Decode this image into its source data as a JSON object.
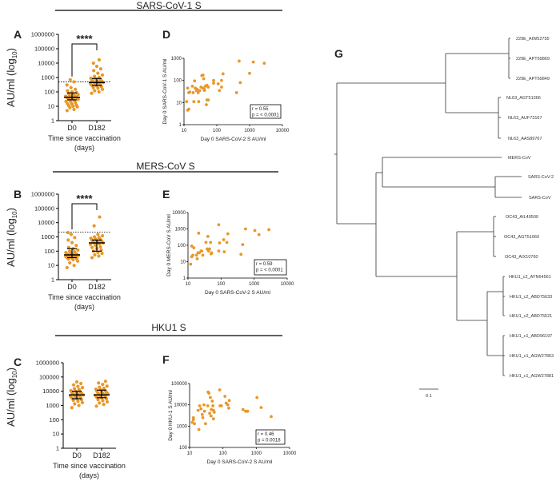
{
  "colors": {
    "dot": "#e8982a",
    "line": "#000000"
  },
  "chart_data": [
    {
      "type": "scatter",
      "panel": "A",
      "section_title": "SARS-CoV-1 S",
      "ylabel": "AU/ml (log10)",
      "ylabel_main": "AU/ml (log",
      "ylabel_sub": "10",
      "ylabel_close": ")",
      "xlabel": "Time since vaccination",
      "xlabel2": "(days)",
      "yscale": "log",
      "ylim": [
        1,
        1000000
      ],
      "yticks": [
        "1",
        "10",
        "100",
        "1000",
        "10000",
        "100000",
        "1000000"
      ],
      "categories": [
        "D0",
        "D182"
      ],
      "threshold": 500,
      "significance": "****",
      "series": [
        {
          "name": "D0",
          "median": 42,
          "iqr": [
            28,
            85
          ],
          "values": [
            5,
            6,
            8,
            9,
            10,
            11,
            12,
            14,
            15,
            18,
            20,
            22,
            25,
            28,
            30,
            32,
            35,
            38,
            40,
            42,
            45,
            48,
            50,
            55,
            60,
            65,
            70,
            80,
            90,
            100,
            120,
            150,
            200,
            300,
            500,
            700
          ]
        },
        {
          "name": "D182",
          "median": 450,
          "iqr": [
            280,
            850
          ],
          "values": [
            80,
            100,
            120,
            150,
            180,
            200,
            230,
            260,
            280,
            300,
            330,
            360,
            400,
            420,
            450,
            480,
            520,
            560,
            600,
            650,
            700,
            800,
            900,
            1000,
            1200,
            1500,
            2000,
            3000,
            4000,
            6000,
            10000,
            17000
          ]
        }
      ]
    },
    {
      "type": "scatter",
      "panel": "D",
      "xlabel": "Day 0 SARS-CoV-2 S AU/ml",
      "ylabel": "Day 0 SARS-CoV-1 S AU/ml",
      "xscale": "log",
      "yscale": "log",
      "xlim": [
        10,
        10000
      ],
      "ylim": [
        1,
        1000
      ],
      "xticks": [
        "10",
        "100",
        "1000",
        "10000"
      ],
      "yticks": [
        "1",
        "10",
        "100",
        "1000"
      ],
      "stats": {
        "r": "r = 0.55",
        "p": "p = < 0.0001"
      },
      "points": [
        [
          12,
          11
        ],
        [
          13,
          4.5
        ],
        [
          14,
          5
        ],
        [
          13,
          45
        ],
        [
          14,
          28
        ],
        [
          15,
          30
        ],
        [
          18,
          55
        ],
        [
          19,
          28
        ],
        [
          20,
          11
        ],
        [
          21,
          95
        ],
        [
          22,
          45
        ],
        [
          24,
          35
        ],
        [
          25,
          40
        ],
        [
          27,
          28
        ],
        [
          28,
          11
        ],
        [
          30,
          35
        ],
        [
          33,
          50
        ],
        [
          35,
          165
        ],
        [
          38,
          175
        ],
        [
          38,
          45
        ],
        [
          40,
          120
        ],
        [
          42,
          40
        ],
        [
          42,
          35
        ],
        [
          45,
          55
        ],
        [
          48,
          8
        ],
        [
          50,
          13
        ],
        [
          50,
          60
        ],
        [
          55,
          13
        ],
        [
          55,
          50
        ],
        [
          80,
          100
        ],
        [
          80,
          75
        ],
        [
          110,
          70
        ],
        [
          120,
          35
        ],
        [
          140,
          100
        ],
        [
          140,
          50
        ],
        [
          155,
          200
        ],
        [
          400,
          28
        ],
        [
          480,
          750
        ],
        [
          520,
          80
        ],
        [
          1000,
          210
        ],
        [
          1300,
          680
        ],
        [
          2800,
          600
        ]
      ]
    },
    {
      "type": "scatter",
      "panel": "B",
      "section_title": "MERS-CoV S",
      "ylabel_main": "AU/ml (log",
      "ylabel_sub": "10",
      "ylabel_close": ")",
      "xlabel": "Time since vaccination",
      "xlabel2": "(days)",
      "yscale": "log",
      "ylim": [
        1,
        1000000
      ],
      "yticks": [
        "1",
        "10",
        "100",
        "1000",
        "10000",
        "100000",
        "1000000"
      ],
      "categories": [
        "D0",
        "D182"
      ],
      "threshold": 2200,
      "significance": "****",
      "series": [
        {
          "name": "D0",
          "median": 55,
          "iqr": [
            35,
            150
          ],
          "values": [
            7,
            10,
            15,
            20,
            25,
            28,
            30,
            32,
            35,
            38,
            40,
            42,
            45,
            48,
            50,
            52,
            55,
            58,
            60,
            65,
            70,
            75,
            80,
            90,
            100,
            120,
            150,
            180,
            250,
            400,
            600,
            900,
            1500,
            2000
          ]
        },
        {
          "name": "D182",
          "median": 380,
          "iqr": [
            100,
            600
          ],
          "values": [
            35,
            45,
            55,
            70,
            80,
            100,
            120,
            150,
            180,
            200,
            250,
            300,
            330,
            360,
            380,
            400,
            450,
            500,
            550,
            600,
            650,
            700,
            800,
            900,
            1000,
            1200,
            1500,
            6000,
            25000
          ]
        }
      ]
    },
    {
      "type": "scatter",
      "panel": "E",
      "xlabel": "Day 0 SARS-CoV-2 S AU/ml",
      "ylabel": "Day 0 MERS-CoV S AU/ml",
      "xscale": "log",
      "yscale": "log",
      "xlim": [
        10,
        10000
      ],
      "ylim": [
        1,
        10000
      ],
      "xticks": [
        "10",
        "100",
        "1000",
        "10000"
      ],
      "yticks": [
        "1",
        "10",
        "100",
        "1000",
        "10000"
      ],
      "stats": {
        "r": "r = 0.59",
        "p": "p = < 0.0001"
      },
      "points": [
        [
          12,
          7
        ],
        [
          13,
          90
        ],
        [
          13,
          20
        ],
        [
          14,
          25
        ],
        [
          15,
          70
        ],
        [
          18,
          25
        ],
        [
          19,
          15
        ],
        [
          20,
          35
        ],
        [
          21,
          550
        ],
        [
          22,
          35
        ],
        [
          25,
          45
        ],
        [
          26,
          45
        ],
        [
          28,
          25
        ],
        [
          35,
          150
        ],
        [
          38,
          60
        ],
        [
          40,
          350
        ],
        [
          40,
          55
        ],
        [
          42,
          45
        ],
        [
          45,
          60
        ],
        [
          48,
          150
        ],
        [
          50,
          30
        ],
        [
          52,
          35
        ],
        [
          85,
          1800
        ],
        [
          85,
          45
        ],
        [
          90,
          140
        ],
        [
          120,
          220
        ],
        [
          125,
          40
        ],
        [
          150,
          150
        ],
        [
          160,
          500
        ],
        [
          400,
          28
        ],
        [
          450,
          110
        ],
        [
          550,
          1000
        ],
        [
          1050,
          800
        ],
        [
          1400,
          450
        ],
        [
          2800,
          900
        ]
      ]
    },
    {
      "type": "scatter",
      "panel": "C",
      "section_title": "HKU1 S",
      "ylabel_main": "AU/ml (log",
      "ylabel_sub": "10",
      "ylabel_close": ")",
      "xlabel": "Time since vaccination",
      "xlabel2": "(days)",
      "yscale": "log",
      "ylim": [
        1,
        1000000
      ],
      "yticks": [
        "1",
        "10",
        "100",
        "1000",
        "10000",
        "100000",
        "1000000"
      ],
      "categories": [
        "D0",
        "D182"
      ],
      "series": [
        {
          "name": "D0",
          "median": 5500,
          "iqr": [
            3000,
            10000
          ],
          "values": [
            700,
            1000,
            1300,
            1600,
            2000,
            2300,
            2600,
            3000,
            3300,
            3600,
            4000,
            4400,
            4800,
            5200,
            5500,
            6000,
            6500,
            7000,
            7500,
            8000,
            9000,
            10000,
            11000,
            13000,
            15000,
            18000,
            22000,
            28000,
            35000,
            45000
          ]
        },
        {
          "name": "D182",
          "median": 5500,
          "iqr": [
            3500,
            12000
          ],
          "values": [
            900,
            1200,
            1500,
            1800,
            2200,
            2600,
            3000,
            3400,
            3800,
            4200,
            4600,
            5000,
            5500,
            6000,
            6500,
            7000,
            7600,
            8200,
            9000,
            10000,
            11000,
            12500,
            14000,
            16000,
            19000,
            23000,
            30000,
            38000,
            50000
          ]
        }
      ]
    },
    {
      "type": "scatter",
      "panel": "F",
      "xlabel": "Day 0 SARS-CoV-2 S AU/ml",
      "ylabel": "Day 0 HKU-1 S AU/ml",
      "xscale": "log",
      "yscale": "log",
      "xlim": [
        10,
        10000
      ],
      "ylim": [
        100,
        100000
      ],
      "xticks": [
        "10",
        "100",
        "1000",
        "10000"
      ],
      "yticks": [
        "100",
        "1000",
        "10000",
        "100000"
      ],
      "stats": {
        "r": "r = 0.46",
        "p": "p = 0.0018"
      },
      "points": [
        [
          12,
          1500
        ],
        [
          13,
          2000
        ],
        [
          13,
          2500
        ],
        [
          14,
          1300
        ],
        [
          18,
          5500
        ],
        [
          19,
          700
        ],
        [
          20,
          9000
        ],
        [
          22,
          6500
        ],
        [
          24,
          3500
        ],
        [
          25,
          2500
        ],
        [
          27,
          10000
        ],
        [
          28,
          5000
        ],
        [
          30,
          1300
        ],
        [
          35,
          9000
        ],
        [
          36,
          40000
        ],
        [
          38,
          35000
        ],
        [
          40,
          4000
        ],
        [
          42,
          22000
        ],
        [
          44,
          3000
        ],
        [
          45,
          6000
        ],
        [
          48,
          15000
        ],
        [
          50,
          9000
        ],
        [
          52,
          2200
        ],
        [
          52,
          5500
        ],
        [
          55,
          4500
        ],
        [
          80,
          50000
        ],
        [
          82,
          9000
        ],
        [
          90,
          9000
        ],
        [
          115,
          25000
        ],
        [
          125,
          12000
        ],
        [
          140,
          10000
        ],
        [
          150,
          7000
        ],
        [
          155,
          16000
        ],
        [
          400,
          6000
        ],
        [
          480,
          5000
        ],
        [
          550,
          5000
        ],
        [
          1050,
          22000
        ],
        [
          1400,
          7500
        ],
        [
          2800,
          2800
        ]
      ]
    }
  ],
  "tree": {
    "panel": "G",
    "scale_label": "0.1",
    "leaves": [
      "229E_AIW52755",
      "229E_APT69869",
      "229E_APT69849",
      "NL63_AGT51366",
      "NL63_AUF73167",
      "NL63_AAS89767",
      "MERS-CoV",
      "SARS-CoV-2",
      "SARS-CoV",
      "OC43_AIL49500",
      "OC43_AGT51660",
      "OC43_AIX10760",
      "HKU1_c2_AYN64561",
      "HKU1_c2_ABD75633",
      "HKU1_c2_ABD75521",
      "HKU1_c1_ABD96197",
      "HKU1_c1_AGW27863",
      "HKU1_c1_AGW27881"
    ]
  }
}
